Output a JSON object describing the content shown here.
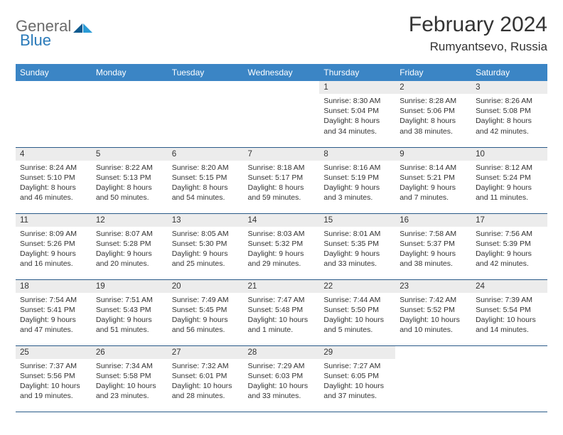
{
  "logo": {
    "text_general": "General",
    "text_blue": "Blue",
    "tri_color_dark": "#0f5a8f",
    "tri_color_light": "#2a9bd6"
  },
  "header": {
    "month_title": "February 2024",
    "location": "Rumyantsevo, Russia"
  },
  "style": {
    "header_bg": "#3b85c5",
    "header_fg": "#ffffff",
    "daynum_bg": "#ececec",
    "row_border": "#2a5a88",
    "page_bg": "#ffffff",
    "text_color": "#333333",
    "daynum_fontsize": 11.5,
    "body_fontsize": 10.5
  },
  "weekdays": [
    "Sunday",
    "Monday",
    "Tuesday",
    "Wednesday",
    "Thursday",
    "Friday",
    "Saturday"
  ],
  "weeks": [
    [
      null,
      null,
      null,
      null,
      {
        "n": "1",
        "sunrise": "8:30 AM",
        "sunset": "5:04 PM",
        "daylight": "8 hours and 34 minutes."
      },
      {
        "n": "2",
        "sunrise": "8:28 AM",
        "sunset": "5:06 PM",
        "daylight": "8 hours and 38 minutes."
      },
      {
        "n": "3",
        "sunrise": "8:26 AM",
        "sunset": "5:08 PM",
        "daylight": "8 hours and 42 minutes."
      }
    ],
    [
      {
        "n": "4",
        "sunrise": "8:24 AM",
        "sunset": "5:10 PM",
        "daylight": "8 hours and 46 minutes."
      },
      {
        "n": "5",
        "sunrise": "8:22 AM",
        "sunset": "5:13 PM",
        "daylight": "8 hours and 50 minutes."
      },
      {
        "n": "6",
        "sunrise": "8:20 AM",
        "sunset": "5:15 PM",
        "daylight": "8 hours and 54 minutes."
      },
      {
        "n": "7",
        "sunrise": "8:18 AM",
        "sunset": "5:17 PM",
        "daylight": "8 hours and 59 minutes."
      },
      {
        "n": "8",
        "sunrise": "8:16 AM",
        "sunset": "5:19 PM",
        "daylight": "9 hours and 3 minutes."
      },
      {
        "n": "9",
        "sunrise": "8:14 AM",
        "sunset": "5:21 PM",
        "daylight": "9 hours and 7 minutes."
      },
      {
        "n": "10",
        "sunrise": "8:12 AM",
        "sunset": "5:24 PM",
        "daylight": "9 hours and 11 minutes."
      }
    ],
    [
      {
        "n": "11",
        "sunrise": "8:09 AM",
        "sunset": "5:26 PM",
        "daylight": "9 hours and 16 minutes."
      },
      {
        "n": "12",
        "sunrise": "8:07 AM",
        "sunset": "5:28 PM",
        "daylight": "9 hours and 20 minutes."
      },
      {
        "n": "13",
        "sunrise": "8:05 AM",
        "sunset": "5:30 PM",
        "daylight": "9 hours and 25 minutes."
      },
      {
        "n": "14",
        "sunrise": "8:03 AM",
        "sunset": "5:32 PM",
        "daylight": "9 hours and 29 minutes."
      },
      {
        "n": "15",
        "sunrise": "8:01 AM",
        "sunset": "5:35 PM",
        "daylight": "9 hours and 33 minutes."
      },
      {
        "n": "16",
        "sunrise": "7:58 AM",
        "sunset": "5:37 PM",
        "daylight": "9 hours and 38 minutes."
      },
      {
        "n": "17",
        "sunrise": "7:56 AM",
        "sunset": "5:39 PM",
        "daylight": "9 hours and 42 minutes."
      }
    ],
    [
      {
        "n": "18",
        "sunrise": "7:54 AM",
        "sunset": "5:41 PM",
        "daylight": "9 hours and 47 minutes."
      },
      {
        "n": "19",
        "sunrise": "7:51 AM",
        "sunset": "5:43 PM",
        "daylight": "9 hours and 51 minutes."
      },
      {
        "n": "20",
        "sunrise": "7:49 AM",
        "sunset": "5:45 PM",
        "daylight": "9 hours and 56 minutes."
      },
      {
        "n": "21",
        "sunrise": "7:47 AM",
        "sunset": "5:48 PM",
        "daylight": "10 hours and 1 minute."
      },
      {
        "n": "22",
        "sunrise": "7:44 AM",
        "sunset": "5:50 PM",
        "daylight": "10 hours and 5 minutes."
      },
      {
        "n": "23",
        "sunrise": "7:42 AM",
        "sunset": "5:52 PM",
        "daylight": "10 hours and 10 minutes."
      },
      {
        "n": "24",
        "sunrise": "7:39 AM",
        "sunset": "5:54 PM",
        "daylight": "10 hours and 14 minutes."
      }
    ],
    [
      {
        "n": "25",
        "sunrise": "7:37 AM",
        "sunset": "5:56 PM",
        "daylight": "10 hours and 19 minutes."
      },
      {
        "n": "26",
        "sunrise": "7:34 AM",
        "sunset": "5:58 PM",
        "daylight": "10 hours and 23 minutes."
      },
      {
        "n": "27",
        "sunrise": "7:32 AM",
        "sunset": "6:01 PM",
        "daylight": "10 hours and 28 minutes."
      },
      {
        "n": "28",
        "sunrise": "7:29 AM",
        "sunset": "6:03 PM",
        "daylight": "10 hours and 33 minutes."
      },
      {
        "n": "29",
        "sunrise": "7:27 AM",
        "sunset": "6:05 PM",
        "daylight": "10 hours and 37 minutes."
      },
      null,
      null
    ]
  ],
  "labels": {
    "sunrise": "Sunrise: ",
    "sunset": "Sunset: ",
    "daylight": "Daylight: "
  }
}
